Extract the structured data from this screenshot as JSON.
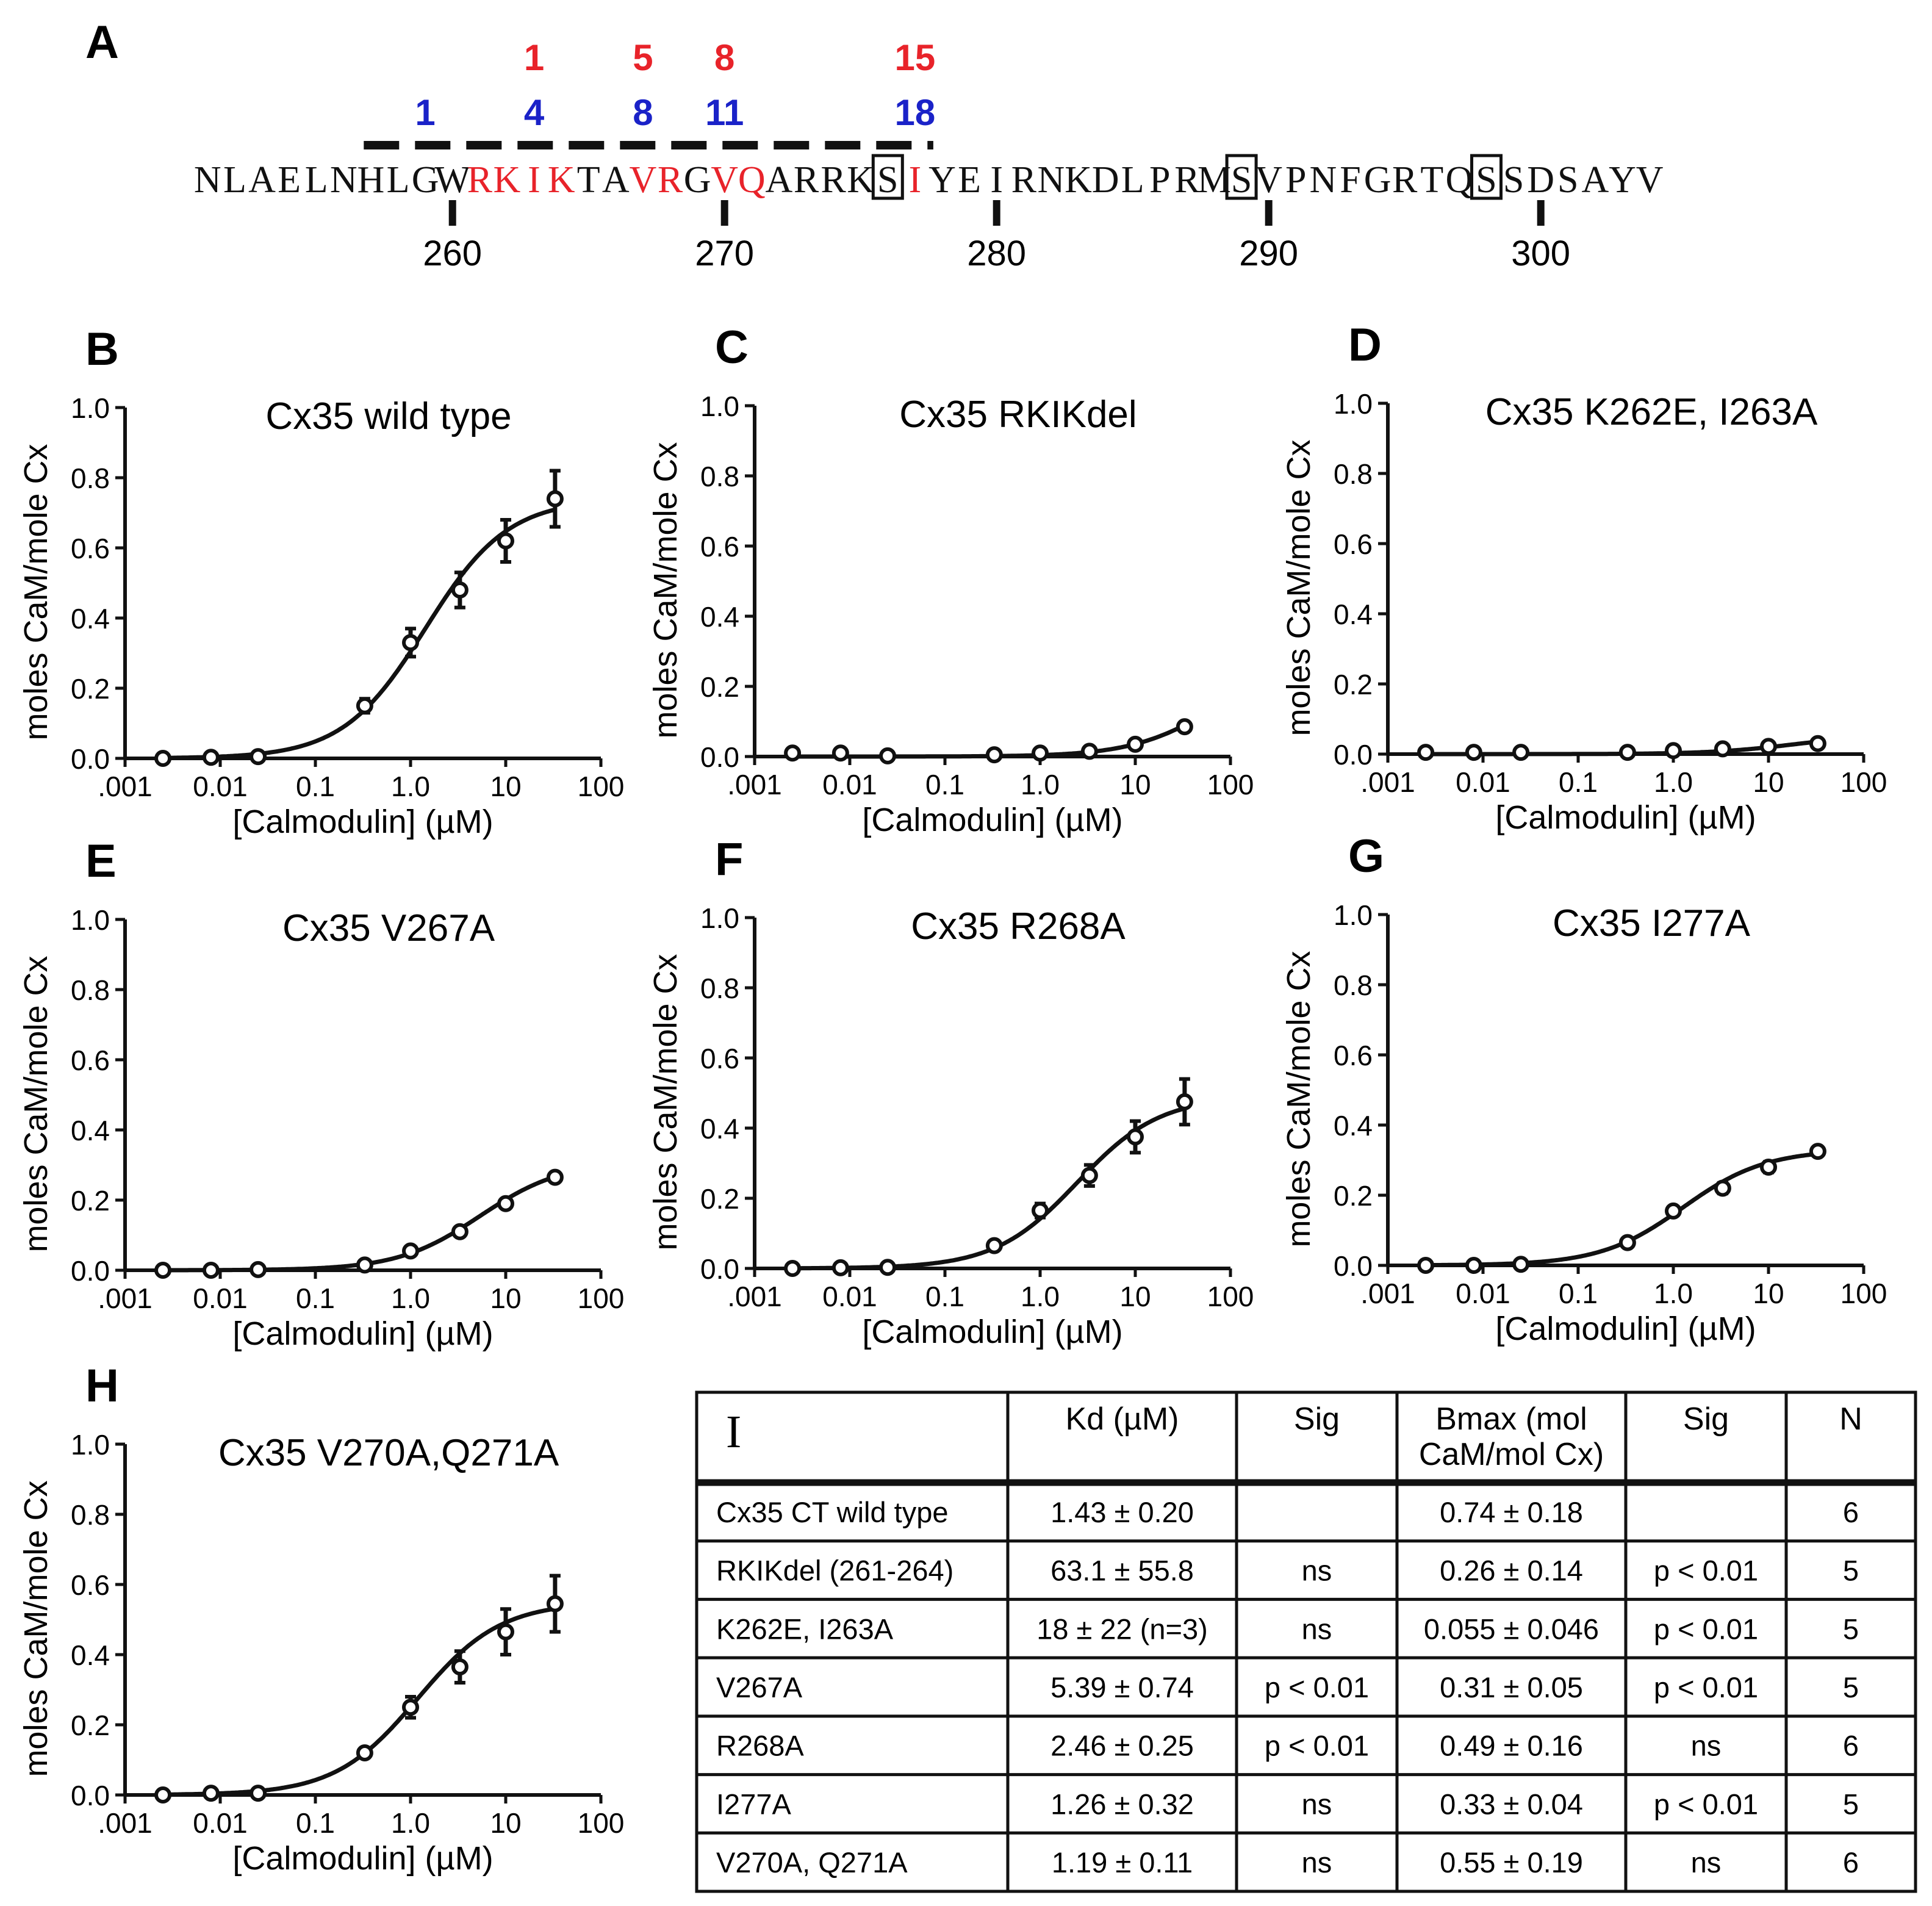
{
  "panel_a": {
    "letter": "A",
    "red_numbers": [
      "1",
      "5",
      "8",
      "15"
    ],
    "blue_numbers": [
      "1",
      "4",
      "8",
      "11",
      "18"
    ],
    "sequence": "NLAELNHLGWRKIKTAVRGVQARRKSIYEIRNKDLPRMSVPNFGRTQSSDSAYV",
    "red_residue_indices": [
      10,
      11,
      12,
      13,
      16,
      17,
      19,
      20,
      26
    ],
    "boxed_residue_indices": [
      25,
      38,
      47
    ],
    "position_labels": [
      "260",
      "270",
      "280",
      "290",
      "300"
    ],
    "colors": {
      "red": "#e8232a",
      "blue": "#1a22c8",
      "black": "#111111"
    }
  },
  "common": {
    "x_tick_labels": [
      ".001",
      "0.01",
      "0.1",
      "1.0",
      "10",
      "100"
    ],
    "y_tick_labels": [
      "0.0",
      "0.2",
      "0.4",
      "0.6",
      "0.8",
      "1.0"
    ],
    "xlabel": "[Calmodulin] (µM)",
    "ylabel": "moles CaM/mole Cx"
  },
  "chart_data": [
    {
      "type": "scatter",
      "letter": "B",
      "title": "Cx35 wild type",
      "x": [
        0.0025,
        0.008,
        0.025,
        0.33,
        1.0,
        3.3,
        10,
        33
      ],
      "y": [
        0.0,
        0.003,
        0.005,
        0.15,
        0.33,
        0.48,
        0.62,
        0.74
      ],
      "err": [
        0,
        0,
        0,
        0.02,
        0.04,
        0.05,
        0.06,
        0.08
      ],
      "fit": {
        "bmax": 0.74,
        "kd": 1.43,
        "n": 1
      },
      "xlim": [
        0.001,
        100
      ],
      "ylim": [
        0,
        1.0
      ],
      "xlabel": "[Calmodulin] (µM)",
      "ylabel": "moles CaM/mole Cx"
    },
    {
      "type": "scatter",
      "letter": "C",
      "title": "Cx35 RKIKdel",
      "x": [
        0.0025,
        0.008,
        0.025,
        0.33,
        1.0,
        3.3,
        10,
        33
      ],
      "y": [
        0.01,
        0.01,
        0.002,
        0.005,
        0.01,
        0.015,
        0.035,
        0.085
      ],
      "err": [
        0,
        0,
        0,
        0,
        0,
        0,
        0,
        0
      ],
      "fit": {
        "bmax": 0.26,
        "kd": 63.1,
        "n": 1
      },
      "xlim": [
        0.001,
        100
      ],
      "ylim": [
        0,
        1.0
      ],
      "xlabel": "[Calmodulin] (µM)",
      "ylabel": "moles CaM/mole Cx"
    },
    {
      "type": "scatter",
      "letter": "D",
      "title": "Cx35 K262E, I263A",
      "x": [
        0.0025,
        0.008,
        0.025,
        0.33,
        1.0,
        3.3,
        10,
        33
      ],
      "y": [
        0.005,
        0.005,
        0.005,
        0.005,
        0.01,
        0.015,
        0.022,
        0.03
      ],
      "err": [
        0,
        0,
        0,
        0,
        0,
        0,
        0,
        0
      ],
      "fit": {
        "bmax": 0.055,
        "kd": 18,
        "n": 1
      },
      "xlim": [
        0.001,
        100
      ],
      "ylim": [
        0,
        1.0
      ],
      "xlabel": "[Calmodulin] (µM)",
      "ylabel": "moles CaM/mole Cx"
    },
    {
      "type": "scatter",
      "letter": "E",
      "title": "Cx35 V267A",
      "x": [
        0.0025,
        0.008,
        0.025,
        0.33,
        1.0,
        3.3,
        10,
        33
      ],
      "y": [
        0.0,
        0.0,
        0.002,
        0.015,
        0.055,
        0.11,
        0.19,
        0.265
      ],
      "err": [
        0,
        0,
        0,
        0,
        0,
        0,
        0,
        0
      ],
      "fit": {
        "bmax": 0.31,
        "kd": 5.39,
        "n": 1
      },
      "xlim": [
        0.001,
        100
      ],
      "ylim": [
        0,
        1.0
      ],
      "xlabel": "[Calmodulin] (µM)",
      "ylabel": "moles CaM/mole Cx"
    },
    {
      "type": "scatter",
      "letter": "F",
      "title": "Cx35 R268A",
      "x": [
        0.0025,
        0.008,
        0.025,
        0.33,
        1.0,
        3.3,
        10,
        33
      ],
      "y": [
        0.0,
        0.002,
        0.003,
        0.065,
        0.165,
        0.265,
        0.375,
        0.475
      ],
      "err": [
        0,
        0,
        0,
        0,
        0.02,
        0.03,
        0.045,
        0.065
      ],
      "fit": {
        "bmax": 0.49,
        "kd": 2.46,
        "n": 1
      },
      "xlim": [
        0.001,
        100
      ],
      "ylim": [
        0,
        1.0
      ],
      "xlabel": "[Calmodulin] (µM)",
      "ylabel": "moles CaM/mole Cx"
    },
    {
      "type": "scatter",
      "letter": "G",
      "title": "Cx35 I277A",
      "x": [
        0.0025,
        0.008,
        0.025,
        0.33,
        1.0,
        3.3,
        10,
        33
      ],
      "y": [
        0.0,
        0.0,
        0.003,
        0.065,
        0.155,
        0.22,
        0.28,
        0.325
      ],
      "err": [
        0,
        0,
        0,
        0,
        0,
        0.015,
        0.015,
        0
      ],
      "fit": {
        "bmax": 0.33,
        "kd": 1.26,
        "n": 1
      },
      "xlim": [
        0.001,
        100
      ],
      "ylim": [
        0,
        1.0
      ],
      "xlabel": "[Calmodulin] (µM)",
      "ylabel": "moles CaM/mole Cx"
    },
    {
      "type": "scatter",
      "letter": "H",
      "title": "Cx35 V270A,Q271A",
      "x": [
        0.0025,
        0.008,
        0.025,
        0.33,
        1.0,
        3.3,
        10,
        33
      ],
      "y": [
        0.0,
        0.005,
        0.005,
        0.12,
        0.25,
        0.365,
        0.465,
        0.545
      ],
      "err": [
        0,
        0,
        0,
        0,
        0.03,
        0.045,
        0.065,
        0.08
      ],
      "fit": {
        "bmax": 0.55,
        "kd": 1.19,
        "n": 1
      },
      "xlim": [
        0.001,
        100
      ],
      "ylim": [
        0,
        1.0
      ],
      "xlabel": "[Calmodulin] (µM)",
      "ylabel": "moles CaM/mole Cx"
    },
    {
      "type": "table",
      "letter": "I",
      "header": [
        [
          "Kd (µM)"
        ],
        [
          "Sig"
        ],
        [
          "Bmax (mol",
          "CaM/mol Cx)"
        ],
        [
          "Sig"
        ],
        [
          "N"
        ]
      ],
      "rows": [
        [
          "Cx35 CT wild type",
          "1.43 ± 0.20",
          "",
          "0.74 ± 0.18",
          "",
          "6"
        ],
        [
          "RKIKdel (261-264)",
          "63.1 ± 55.8",
          "ns",
          "0.26 ± 0.14",
          "p < 0.01",
          "5"
        ],
        [
          "K262E, I263A",
          "18 ± 22 (n=3)",
          "ns",
          "0.055 ± 0.046",
          "p < 0.01",
          "5"
        ],
        [
          "V267A",
          "5.39 ± 0.74",
          "p < 0.01",
          "0.31 ± 0.05",
          "p < 0.01",
          "5"
        ],
        [
          "R268A",
          "2.46 ± 0.25",
          "p < 0.01",
          "0.49 ± 0.16",
          "ns",
          "6"
        ],
        [
          "I277A",
          "1.26 ± 0.32",
          "ns",
          "0.33 ± 0.04",
          "p < 0.01",
          "5"
        ],
        [
          "V270A, Q271A",
          "1.19 ± 0.11",
          "ns",
          "0.55 ± 0.19",
          "ns",
          "6"
        ]
      ]
    }
  ]
}
